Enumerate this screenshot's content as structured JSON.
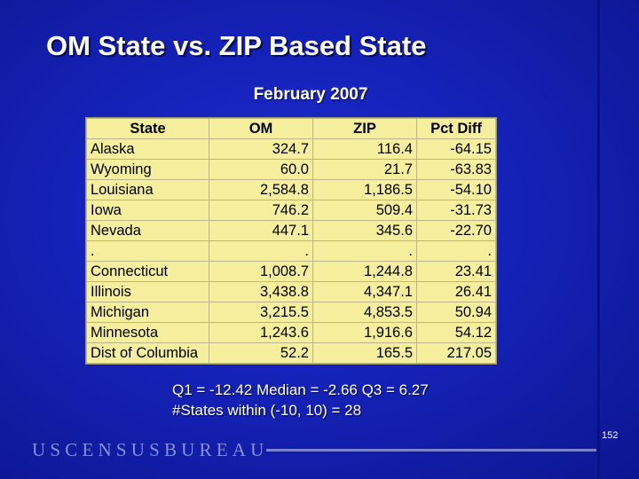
{
  "slide": {
    "title": "OM State vs. ZIP Based State",
    "subtitle": "February 2007",
    "page_number": "152",
    "logo_text": "USCENSUSBUREAU"
  },
  "table": {
    "headers": [
      "State",
      "OM",
      "ZIP",
      "Pct Diff"
    ],
    "rows": [
      [
        "Alaska",
        "324.7",
        "116.4",
        "-64.15"
      ],
      [
        "Wyoming",
        "60.0",
        "21.7",
        "-63.83"
      ],
      [
        "Louisiana",
        "2,584.8",
        "1,186.5",
        "-54.10"
      ],
      [
        "Iowa",
        "746.2",
        "509.4",
        "-31.73"
      ],
      [
        "Nevada",
        "447.1",
        "345.6",
        "-22.70"
      ],
      [
        ".",
        ".",
        ".",
        "."
      ],
      [
        "Connecticut",
        "1,008.7",
        "1,244.8",
        "23.41"
      ],
      [
        "Illinois",
        "3,438.8",
        "4,347.1",
        "26.41"
      ],
      [
        "Michigan",
        "3,215.5",
        "4,853.5",
        "50.94"
      ],
      [
        "Minnesota",
        "1,243.6",
        "1,916.6",
        "54.12"
      ],
      [
        "Dist of Columbia",
        "52.2",
        "165.5",
        "217.05"
      ]
    ]
  },
  "stats": {
    "line1": "Q1 = -12.42  Median = -2.66  Q3 = 6.27",
    "line2": "#States within (-10, 10) = 28"
  },
  "colors": {
    "background": "#1522b8",
    "table_background": "#f5ef9d",
    "text": "#ffffff",
    "logo": "#8890d6"
  }
}
